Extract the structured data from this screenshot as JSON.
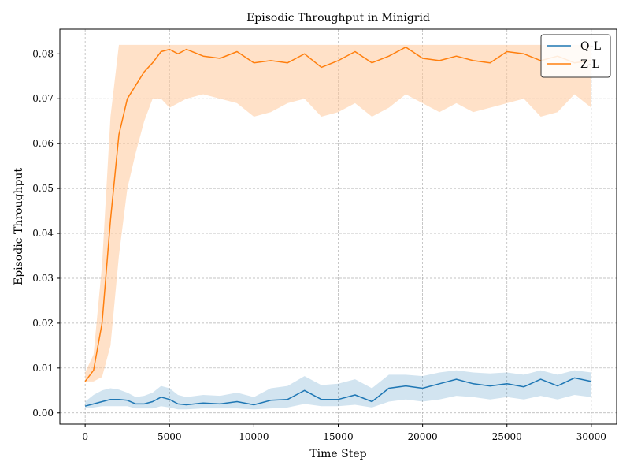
{
  "chart_data": {
    "type": "line",
    "title": "Episodic Throughput in Minigrid",
    "xlabel": "Time Step",
    "ylabel": "Episodic Throughput",
    "xlim": [
      -1500,
      31500
    ],
    "ylim": [
      -0.0025,
      0.0855
    ],
    "xticks": [
      0,
      5000,
      10000,
      15000,
      20000,
      25000,
      30000
    ],
    "xtick_labels": [
      "0",
      "5000",
      "10000",
      "15000",
      "20000",
      "25000",
      "30000"
    ],
    "yticks": [
      0.0,
      0.01,
      0.02,
      0.03,
      0.04,
      0.05,
      0.06,
      0.07,
      0.08
    ],
    "ytick_labels": [
      "0.00",
      "0.01",
      "0.02",
      "0.03",
      "0.04",
      "0.05",
      "0.06",
      "0.07",
      "0.08"
    ],
    "grid": true,
    "legend_position": "top-right",
    "x": [
      0,
      500,
      1000,
      1500,
      2000,
      2500,
      3000,
      3500,
      4000,
      4500,
      5000,
      5500,
      6000,
      7000,
      8000,
      9000,
      10000,
      11000,
      12000,
      13000,
      14000,
      15000,
      16000,
      17000,
      18000,
      19000,
      20000,
      21000,
      22000,
      23000,
      24000,
      25000,
      26000,
      27000,
      28000,
      29000,
      30000
    ],
    "series": [
      {
        "name": "Q-L",
        "color": "#1f77b4",
        "band_color": "#1f77b4",
        "values": [
          0.0015,
          0.002,
          0.0025,
          0.003,
          0.003,
          0.0028,
          0.002,
          0.002,
          0.0025,
          0.0035,
          0.003,
          0.002,
          0.0018,
          0.0022,
          0.002,
          0.0025,
          0.0018,
          0.0028,
          0.003,
          0.005,
          0.003,
          0.003,
          0.004,
          0.0025,
          0.0055,
          0.006,
          0.0055,
          0.0065,
          0.0075,
          0.0065,
          0.006,
          0.0065,
          0.0058,
          0.0075,
          0.006,
          0.0078,
          0.007
        ],
        "lower": [
          0.001,
          0.0012,
          0.0015,
          0.0015,
          0.0015,
          0.0015,
          0.001,
          0.001,
          0.001,
          0.0015,
          0.0012,
          0.0008,
          0.0008,
          0.001,
          0.001,
          0.001,
          0.0008,
          0.001,
          0.0012,
          0.002,
          0.0015,
          0.0015,
          0.0018,
          0.0012,
          0.0025,
          0.003,
          0.0025,
          0.003,
          0.0038,
          0.0035,
          0.003,
          0.0035,
          0.003,
          0.0038,
          0.003,
          0.004,
          0.0035
        ],
        "upper": [
          0.0025,
          0.004,
          0.005,
          0.0055,
          0.0052,
          0.0045,
          0.0035,
          0.0038,
          0.0045,
          0.006,
          0.0055,
          0.004,
          0.0035,
          0.004,
          0.0038,
          0.0045,
          0.0035,
          0.0055,
          0.006,
          0.0082,
          0.0062,
          0.0065,
          0.0075,
          0.0055,
          0.0085,
          0.0085,
          0.0082,
          0.009,
          0.0095,
          0.009,
          0.0088,
          0.009,
          0.0085,
          0.0095,
          0.0085,
          0.0095,
          0.009
        ]
      },
      {
        "name": "Z-L",
        "color": "#ff7f0e",
        "band_color": "#ffc99a",
        "values": [
          0.007,
          0.0095,
          0.02,
          0.043,
          0.062,
          0.07,
          0.073,
          0.076,
          0.078,
          0.0805,
          0.081,
          0.08,
          0.081,
          0.0795,
          0.079,
          0.0805,
          0.078,
          0.0785,
          0.078,
          0.08,
          0.077,
          0.0785,
          0.0805,
          0.078,
          0.0795,
          0.0815,
          0.079,
          0.0785,
          0.0795,
          0.0785,
          0.078,
          0.0805,
          0.08,
          0.0785,
          0.0795,
          0.078,
          0.0785
        ],
        "lower": [
          0.007,
          0.007,
          0.008,
          0.015,
          0.035,
          0.05,
          0.058,
          0.065,
          0.07,
          0.07,
          0.068,
          0.069,
          0.07,
          0.071,
          0.07,
          0.069,
          0.066,
          0.067,
          0.069,
          0.07,
          0.066,
          0.067,
          0.069,
          0.066,
          0.068,
          0.071,
          0.069,
          0.067,
          0.069,
          0.067,
          0.068,
          0.069,
          0.07,
          0.066,
          0.067,
          0.071,
          0.068
        ],
        "upper": [
          0.009,
          0.013,
          0.033,
          0.066,
          0.082,
          0.082,
          0.082,
          0.082,
          0.082,
          0.082,
          0.082,
          0.082,
          0.082,
          0.082,
          0.082,
          0.082,
          0.082,
          0.082,
          0.082,
          0.082,
          0.082,
          0.082,
          0.082,
          0.082,
          0.082,
          0.082,
          0.082,
          0.082,
          0.082,
          0.082,
          0.082,
          0.082,
          0.082,
          0.082,
          0.082,
          0.082,
          0.082
        ]
      }
    ]
  }
}
